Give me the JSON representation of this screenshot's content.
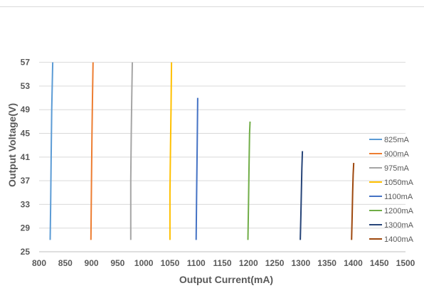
{
  "chart_data": {
    "type": "line",
    "title": "",
    "xlabel": "Output Current(mA)",
    "ylabel": "Output Voltage(V)",
    "xlim": [
      800,
      1500
    ],
    "ylim": [
      25,
      59
    ],
    "xticks": [
      "800",
      "850",
      "900",
      "950",
      "1000",
      "1050",
      "1100",
      "1150",
      "1200",
      "1250",
      "1300",
      "1350",
      "1400",
      "1450",
      "1500"
    ],
    "yticks": [
      "25",
      "29",
      "33",
      "37",
      "41",
      "45",
      "49",
      "53",
      "57"
    ],
    "grid": "horizontal",
    "legend_position": "right",
    "series": [
      {
        "name": "825mA",
        "color": "#5B9BD5",
        "points": [
          [
            821,
            27
          ],
          [
            822,
            33
          ],
          [
            823,
            41
          ],
          [
            824,
            49
          ],
          [
            825,
            53
          ],
          [
            826,
            57
          ]
        ]
      },
      {
        "name": "900mA",
        "color": "#ED7D31",
        "points": [
          [
            899,
            27
          ],
          [
            900,
            37
          ],
          [
            901,
            45
          ],
          [
            902,
            51
          ],
          [
            903,
            57
          ]
        ]
      },
      {
        "name": "975mA",
        "color": "#A5A5A5",
        "points": [
          [
            975,
            27
          ],
          [
            975,
            37
          ],
          [
            976,
            45
          ],
          [
            977,
            51
          ],
          [
            978,
            57
          ]
        ]
      },
      {
        "name": "1050mA",
        "color": "#FFC000",
        "points": [
          [
            1050,
            27
          ],
          [
            1050,
            35
          ],
          [
            1051,
            43
          ],
          [
            1052,
            49
          ],
          [
            1053,
            57
          ]
        ]
      },
      {
        "name": "1100mA",
        "color": "#4472C4",
        "points": [
          [
            1100,
            27
          ],
          [
            1101,
            35
          ],
          [
            1102,
            43
          ],
          [
            1103,
            51
          ]
        ]
      },
      {
        "name": "1200mA",
        "color": "#70AD47",
        "points": [
          [
            1199,
            27
          ],
          [
            1200,
            33
          ],
          [
            1201,
            39
          ],
          [
            1202,
            45
          ],
          [
            1203,
            47
          ]
        ]
      },
      {
        "name": "1300mA",
        "color": "#264478",
        "points": [
          [
            1299,
            27
          ],
          [
            1300,
            31
          ],
          [
            1301,
            35
          ],
          [
            1302,
            39
          ],
          [
            1303,
            42
          ]
        ]
      },
      {
        "name": "1400mA",
        "color": "#9E480E",
        "points": [
          [
            1397,
            27
          ],
          [
            1398,
            31
          ],
          [
            1399,
            35
          ],
          [
            1400,
            38
          ],
          [
            1401,
            40
          ]
        ]
      }
    ]
  }
}
